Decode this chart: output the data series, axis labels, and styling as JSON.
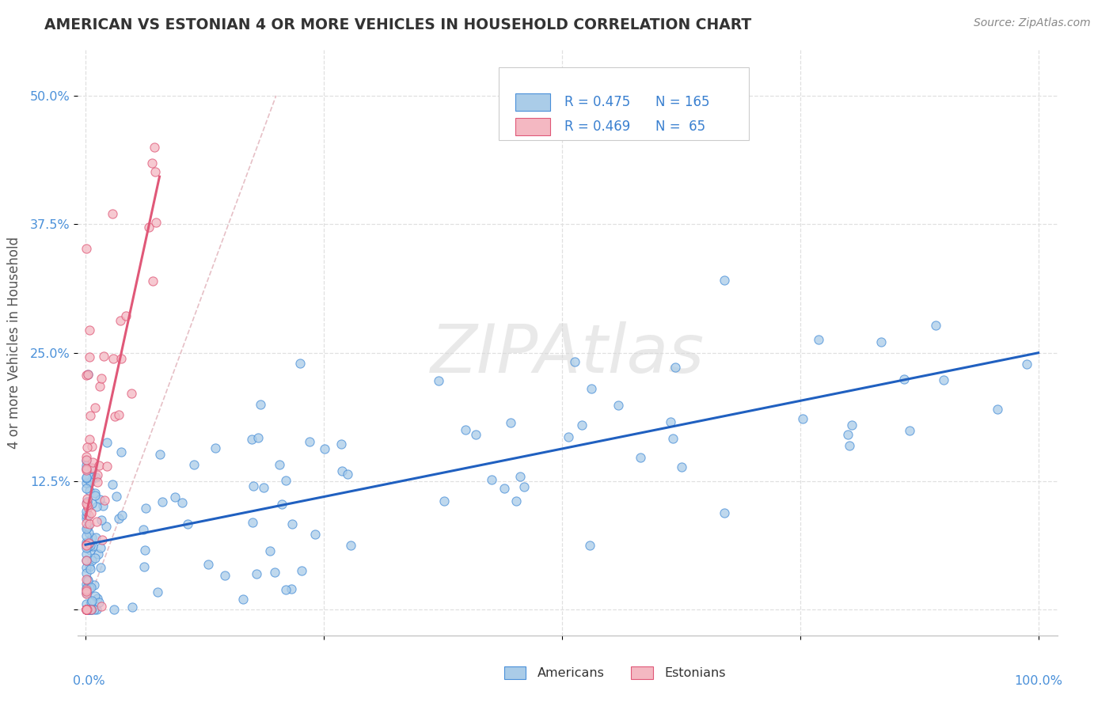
{
  "title": "AMERICAN VS ESTONIAN 4 OR MORE VEHICLES IN HOUSEHOLD CORRELATION CHART",
  "source": "Source: ZipAtlas.com",
  "ylabel": "4 or more Vehicles in Household",
  "legend_american_r": "R = 0.475",
  "legend_american_n": "N = 165",
  "legend_estonian_r": "R = 0.469",
  "legend_estonian_n": "N =  65",
  "american_fill": "#aacce8",
  "american_edge": "#4a90d9",
  "estonian_fill": "#f4b8c2",
  "estonian_edge": "#e05878",
  "american_line_color": "#2060c0",
  "estonian_line_color": "#e05878",
  "ref_line_color": "#e0b0b8",
  "watermark": "ZIPAtlas",
  "watermark_color": "#d8d8d8",
  "background_color": "#ffffff",
  "title_color": "#333333",
  "axis_label_color": "#555555",
  "tick_color": "#4a90d9",
  "legend_text_black": "#222222",
  "legend_text_blue": "#3a80d0",
  "grid_color": "#e0e0e0"
}
